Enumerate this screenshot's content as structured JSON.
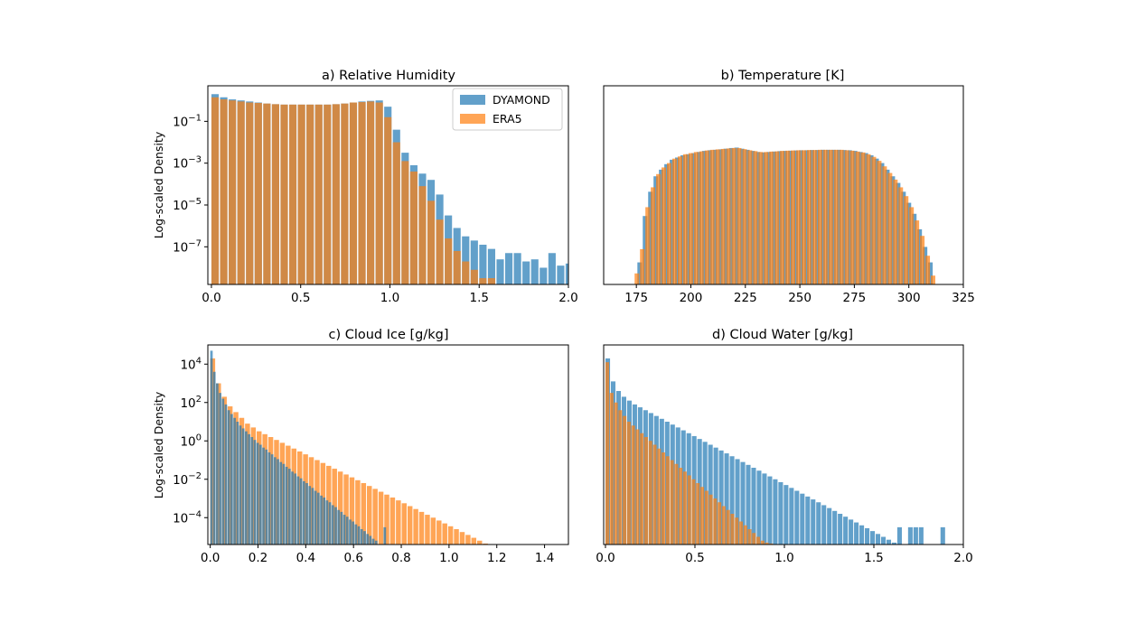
{
  "figure": {
    "legend": [
      {
        "name": "DYAMOND",
        "color": "#1f77b4"
      },
      {
        "name": "ERA5",
        "color": "#ff7f0e"
      }
    ]
  },
  "chart_data": [
    {
      "type": "bar",
      "panel": "a",
      "title": "a) Relative Humidity",
      "xlabel": "",
      "ylabel": "Log-scaled Density",
      "yscale": "log",
      "xlim": [
        -0.02,
        2.0
      ],
      "ylim_log10": [
        -8.8,
        0.7
      ],
      "xticks": [
        0.0,
        0.5,
        1.0,
        1.5,
        2.0
      ],
      "xtick_labels": [
        "0.0",
        "0.5",
        "1.0",
        "1.5",
        "2.0"
      ],
      "yticks_log10": [
        -7,
        -5,
        -3,
        -1
      ],
      "ytick_labels": [
        "10^-7",
        "10^-5",
        "10^-3",
        "10^-1"
      ],
      "legend_position": "top-right",
      "series": [
        {
          "name": "DYAMOND",
          "color": "#1f77b4",
          "bin_start": 0.0,
          "bin_width": 0.0484,
          "log10_values": [
            0.3,
            0.15,
            0.05,
            0.0,
            -0.05,
            -0.1,
            -0.15,
            -0.18,
            -0.2,
            -0.2,
            -0.2,
            -0.2,
            -0.2,
            -0.2,
            -0.18,
            -0.15,
            -0.1,
            -0.05,
            -0.02,
            0.0,
            -0.3,
            -1.4,
            -2.5,
            -3.1,
            -3.5,
            -3.8,
            -4.5,
            -5.5,
            -6.1,
            -6.5,
            -6.7,
            -6.9,
            -7.1,
            -7.6,
            -7.3,
            -7.3,
            -7.7,
            -7.6,
            -8.0,
            -7.3,
            -7.9,
            -7.8,
            -8.2,
            -7.8,
            -8.5,
            -8.4,
            -8.8,
            -8.3,
            -8.6,
            -8.7,
            -8.8,
            -8.8,
            -8.8,
            -8.8,
            -8.8,
            -8.8,
            -8.8,
            -8.8,
            -8.8,
            -8.8,
            -8.8,
            -8.8,
            -8.8,
            -8.8,
            -8.8,
            -8.8,
            -8.8,
            -8.8,
            -8.8,
            -8.8,
            -8.8,
            -8.8,
            -8.8,
            -8.8,
            -8.8,
            -8.8,
            -8.8,
            -8.8,
            -8.8,
            -8.8,
            -8.8,
            -8.8,
            -8.8,
            -8.8,
            -8.8,
            -8.8,
            -8.8,
            -8.8,
            -8.8,
            -8.8,
            -8.8,
            -8.8,
            -8.8,
            -8.8,
            -8.8,
            -8.8,
            -8.8,
            -8.8,
            -8.8,
            -8.8,
            -8.8,
            -8.8,
            -8.8,
            -8.8,
            -8.8,
            -8.8,
            -8.8,
            -8.8,
            -8.8,
            -8.8,
            -8.8,
            -8.8,
            -8.8,
            -8.8,
            -8.8,
            -8.8,
            -8.8,
            -8.8,
            -8.8,
            -8.8,
            -8.8,
            -8.8,
            -8.8,
            -8.8,
            -8.8,
            -8.8,
            -8.8,
            -8.8,
            -8.8,
            -8.8,
            -8.8,
            -8.8,
            -8.8,
            -8.8,
            -8.8,
            -8.8,
            -8.8,
            -8.8,
            -8.8,
            -8.8,
            -8.8,
            -8.8,
            -8.8,
            -8.8,
            -8.8,
            -8.8,
            -8.8,
            -8.8,
            -8.8,
            -8.8,
            -8.8,
            -8.8,
            -8.8,
            -8.8,
            -8.8,
            -8.8,
            -8.8,
            -8.8,
            -8.8,
            -8.8,
            -8.8,
            -8.8,
            -8.8,
            -8.8,
            -8.8,
            -8.8,
            -8.8,
            -8.8,
            -8.8,
            -8.8,
            -8.8,
            -8.8,
            -8.8,
            -8.8,
            -8.8,
            -8.8,
            -8.8,
            -8.8,
            -8.8,
            -8.8,
            -8.8,
            -8.8
          ]
        },
        {
          "name": "ERA5",
          "color": "#ff7f0e",
          "bin_start": 0.0,
          "bin_width": 0.0484,
          "log10_values": [
            0.15,
            0.05,
            0.0,
            -0.05,
            -0.1,
            -0.12,
            -0.15,
            -0.18,
            -0.2,
            -0.2,
            -0.2,
            -0.2,
            -0.2,
            -0.2,
            -0.18,
            -0.15,
            -0.1,
            -0.08,
            -0.05,
            -0.1,
            -0.8,
            -2.0,
            -2.9,
            -3.4,
            -4.1,
            -4.8,
            -5.7,
            -6.6,
            -7.2,
            -7.7,
            -8.1,
            -8.5,
            -8.5,
            -8.8,
            -8.8,
            -8.8,
            -8.8,
            -8.8,
            -8.8,
            -8.8,
            -8.8,
            -8.8,
            -8.8,
            -8.8,
            -8.8,
            -8.8,
            -8.8,
            -8.8,
            -8.8,
            -8.8,
            -8.8,
            -8.8,
            -8.8,
            -8.8,
            -8.8,
            -8.8,
            -8.8,
            -8.8,
            -8.8,
            -8.8,
            -8.8,
            -8.8,
            -8.8,
            -8.8,
            -8.8,
            -8.8,
            -8.8,
            -8.8,
            -8.8,
            -8.8,
            -8.8,
            -8.8,
            -8.8,
            -8.8,
            -8.8,
            -8.8,
            -8.8,
            -8.8,
            -8.8,
            -8.8,
            -8.8,
            -8.8,
            -8.8,
            -8.8,
            -8.8,
            -8.8,
            -8.8,
            -8.8,
            -8.8,
            -8.8,
            -8.8,
            -8.8,
            -8.8,
            -8.8,
            -8.8,
            -8.8,
            -8.8,
            -8.8,
            -8.8,
            -8.8,
            -8.8,
            -8.8,
            -8.8,
            -8.8,
            -8.8,
            -8.8,
            -8.8,
            -8.8,
            -8.8,
            -8.8,
            -8.8,
            -8.8,
            -8.8,
            -8.8,
            -8.8,
            -8.8,
            -8.8,
            -8.8,
            -8.8,
            -8.8,
            -8.8,
            -8.8,
            -8.8,
            -8.8,
            -8.8,
            -8.8,
            -8.8,
            -8.8,
            -8.8,
            -8.8,
            -8.8,
            -8.8,
            -8.8,
            -8.8,
            -8.8,
            -8.8,
            -8.8,
            -8.8,
            -8.8,
            -8.8,
            -8.8,
            -8.8,
            -8.8,
            -8.8,
            -8.8,
            -8.8,
            -8.8,
            -8.8,
            -8.8,
            -8.8,
            -8.8,
            -8.8,
            -8.8,
            -8.8,
            -8.8,
            -8.8,
            -8.8,
            -8.8,
            -8.8,
            -8.8,
            -8.8,
            -8.8,
            -8.8,
            -8.8,
            -8.8,
            -8.8,
            -8.8,
            -8.8,
            -8.8,
            -8.8,
            -8.8,
            -8.8,
            -8.8,
            -8.8,
            -8.8,
            -8.8,
            -8.8,
            -8.8,
            -8.8,
            -8.8,
            -8.8,
            -8.8,
            -8.8,
            -8.8,
            -8.8,
            -8.8,
            -8.8,
            -8.8,
            -8.8,
            -8.8
          ]
        }
      ]
    },
    {
      "type": "bar",
      "panel": "b",
      "title": "b) Temperature [K]",
      "xlabel": "",
      "ylabel": "",
      "yscale": "log",
      "xlim": [
        160,
        325
      ],
      "ylim_log10": [
        -8.5,
        0.5
      ],
      "xticks": [
        175,
        200,
        225,
        250,
        275,
        300,
        325
      ],
      "xtick_labels": [
        "175",
        "200",
        "225",
        "250",
        "275",
        "300",
        "325"
      ],
      "yticks_log10": [],
      "ytick_labels": [],
      "series": [
        {
          "name": "DYAMOND",
          "color": "#1f77b4",
          "bin_start": 173.0,
          "bin_width": 2.47,
          "log10_values": [
            -8.5,
            -7.5,
            -5.4,
            -4.3,
            -3.6,
            -3.3,
            -3.05,
            -2.85,
            -2.75,
            -2.65,
            -2.6,
            -2.55,
            -2.5,
            -2.45,
            -2.42,
            -2.4,
            -2.38,
            -2.35,
            -2.32,
            -2.3,
            -2.35,
            -2.4,
            -2.45,
            -2.5,
            -2.52,
            -2.5,
            -2.48,
            -2.46,
            -2.45,
            -2.44,
            -2.43,
            -2.42,
            -2.42,
            -2.41,
            -2.41,
            -2.4,
            -2.4,
            -2.4,
            -2.4,
            -2.41,
            -2.42,
            -2.45,
            -2.5,
            -2.55,
            -2.65,
            -2.8,
            -3.0,
            -3.3,
            -3.6,
            -3.9,
            -4.3,
            -4.8,
            -5.3,
            -6.0,
            -6.8,
            -7.5
          ]
        },
        {
          "name": "ERA5",
          "color": "#ff7f0e",
          "bin_start": 174.2,
          "bin_width": 2.47,
          "log10_values": [
            -8.0,
            -6.9,
            -5.0,
            -4.1,
            -3.5,
            -3.2,
            -3.0,
            -2.8,
            -2.7,
            -2.6,
            -2.55,
            -2.5,
            -2.47,
            -2.43,
            -2.4,
            -2.38,
            -2.36,
            -2.34,
            -2.32,
            -2.32,
            -2.37,
            -2.42,
            -2.46,
            -2.5,
            -2.5,
            -2.48,
            -2.47,
            -2.45,
            -2.44,
            -2.43,
            -2.42,
            -2.42,
            -2.41,
            -2.41,
            -2.4,
            -2.4,
            -2.4,
            -2.4,
            -2.4,
            -2.42,
            -2.44,
            -2.48,
            -2.52,
            -2.6,
            -2.72,
            -2.9,
            -3.15,
            -3.45,
            -3.75,
            -4.1,
            -4.5,
            -5.0,
            -5.6,
            -6.3,
            -7.2,
            -8.1
          ]
        }
      ]
    },
    {
      "type": "bar",
      "panel": "c",
      "title": "c) Cloud Ice [g/kg]",
      "xlabel": "",
      "ylabel": "Log-scaled Density",
      "yscale": "log",
      "xlim": [
        -0.01,
        1.5
      ],
      "ylim_log10": [
        -5.4,
        5.0
      ],
      "xticks": [
        0.0,
        0.2,
        0.4,
        0.6,
        0.8,
        1.0,
        1.2,
        1.4
      ],
      "xtick_labels": [
        "0.0",
        "0.2",
        "0.4",
        "0.6",
        "0.8",
        "1.0",
        "1.2",
        "1.4"
      ],
      "yticks_log10": [
        -4,
        -2,
        0,
        2,
        4
      ],
      "ytick_labels": [
        "10^-4",
        "10^-2",
        "10^0",
        "10^2",
        "10^4"
      ],
      "series": [
        {
          "name": "ERA5",
          "color": "#ff7f0e",
          "bin_start": 0.0,
          "bin_width": 0.0243,
          "log10_values": [
            4.3,
            3.0,
            2.3,
            1.8,
            1.5,
            1.2,
            0.9,
            0.7,
            0.5,
            0.35,
            0.2,
            0.05,
            -0.1,
            -0.25,
            -0.4,
            -0.55,
            -0.7,
            -0.85,
            -1.0,
            -1.15,
            -1.3,
            -1.45,
            -1.6,
            -1.75,
            -1.9,
            -2.05,
            -2.2,
            -2.35,
            -2.5,
            -2.65,
            -2.8,
            -2.95,
            -3.1,
            -3.25,
            -3.4,
            -3.55,
            -3.7,
            -3.85,
            -4.0,
            -4.15,
            -4.3,
            -4.45,
            -4.6,
            -4.75,
            -4.9,
            -5.05,
            -5.2,
            -5.35,
            -5.4,
            -5.4,
            -5.4,
            -5.4,
            -5.4,
            -5.4,
            -5.4,
            -5.4,
            -5.4,
            -5.4,
            -5.4,
            -5.4
          ]
        },
        {
          "name": "DYAMOND",
          "color": "#1f77b4",
          "bin_start": 0.0,
          "bin_width": 0.0121,
          "log10_values": [
            4.7,
            3.6,
            3.0,
            2.5,
            2.2,
            1.9,
            1.6,
            1.4,
            1.2,
            1.0,
            0.8,
            0.65,
            0.5,
            0.35,
            0.2,
            0.05,
            -0.1,
            -0.2,
            -0.35,
            -0.45,
            -0.6,
            -0.7,
            -0.85,
            -0.95,
            -1.1,
            -1.2,
            -1.35,
            -1.45,
            -1.6,
            -1.7,
            -1.85,
            -1.95,
            -2.1,
            -2.2,
            -2.35,
            -2.45,
            -2.6,
            -2.7,
            -2.85,
            -2.95,
            -3.1,
            -3.2,
            -3.35,
            -3.45,
            -3.6,
            -3.7,
            -3.85,
            -3.95,
            -4.1,
            -4.2,
            -4.35,
            -4.45,
            -4.6,
            -4.7,
            -4.85,
            -4.95,
            -5.1,
            -5.2,
            -5.4,
            -5.4,
            -4.5
          ]
        }
      ]
    },
    {
      "type": "bar",
      "panel": "d",
      "title": "d) Cloud Water [g/kg]",
      "xlabel": "",
      "ylabel": "",
      "yscale": "log",
      "xlim": [
        -0.01,
        2.0
      ],
      "ylim_log10": [
        -5.5,
        4.9
      ],
      "xticks": [
        0.0,
        0.5,
        1.0,
        1.5,
        2.0
      ],
      "xtick_labels": [
        "0.0",
        "0.5",
        "1.0",
        "1.5",
        "2.0"
      ],
      "yticks_log10": [],
      "ytick_labels": [],
      "series": [
        {
          "name": "DYAMOND",
          "color": "#1f77b4",
          "bin_start": 0.0,
          "bin_width": 0.0302,
          "log10_values": [
            4.2,
            3.0,
            2.5,
            2.2,
            2.0,
            1.8,
            1.65,
            1.5,
            1.35,
            1.2,
            1.05,
            0.9,
            0.75,
            0.6,
            0.45,
            0.3,
            0.15,
            0.0,
            -0.15,
            -0.3,
            -0.45,
            -0.6,
            -0.75,
            -0.9,
            -1.05,
            -1.2,
            -1.35,
            -1.5,
            -1.65,
            -1.8,
            -1.95,
            -2.1,
            -2.25,
            -2.4,
            -2.55,
            -2.7,
            -2.85,
            -3.0,
            -3.15,
            -3.3,
            -3.45,
            -3.6,
            -3.75,
            -3.9,
            -4.05,
            -4.2,
            -4.35,
            -4.5,
            -4.65,
            -4.8,
            -4.95,
            -5.1,
            -5.25,
            -5.4,
            -4.6,
            -5.5,
            -4.6,
            -4.6,
            -4.6,
            -5.5,
            -5.5,
            -5.5,
            -4.6
          ]
        },
        {
          "name": "ERA5",
          "color": "#ff7f0e",
          "bin_start": 0.0,
          "bin_width": 0.0241,
          "log10_values": [
            4.0,
            2.4,
            1.9,
            1.5,
            1.2,
            0.9,
            0.7,
            0.5,
            0.3,
            0.1,
            -0.1,
            -0.3,
            -0.5,
            -0.7,
            -0.9,
            -1.1,
            -1.3,
            -1.5,
            -1.7,
            -1.9,
            -2.1,
            -2.3,
            -2.5,
            -2.7,
            -2.9,
            -3.1,
            -3.3,
            -3.5,
            -3.7,
            -3.9,
            -4.1,
            -4.3,
            -4.5,
            -4.7,
            -4.9,
            -5.1,
            -5.3,
            -5.4,
            -5.45,
            -5.5,
            -5.5,
            -5.5,
            -5.5,
            -5.5,
            -5.5,
            -5.5,
            -5.5,
            -5.5,
            -5.5,
            -5.5,
            -5.5,
            -5.5,
            -5.5,
            -5.5,
            -5.5,
            -5.5,
            -5.5,
            -5.5,
            -5.5,
            -5.5
          ]
        }
      ]
    }
  ]
}
